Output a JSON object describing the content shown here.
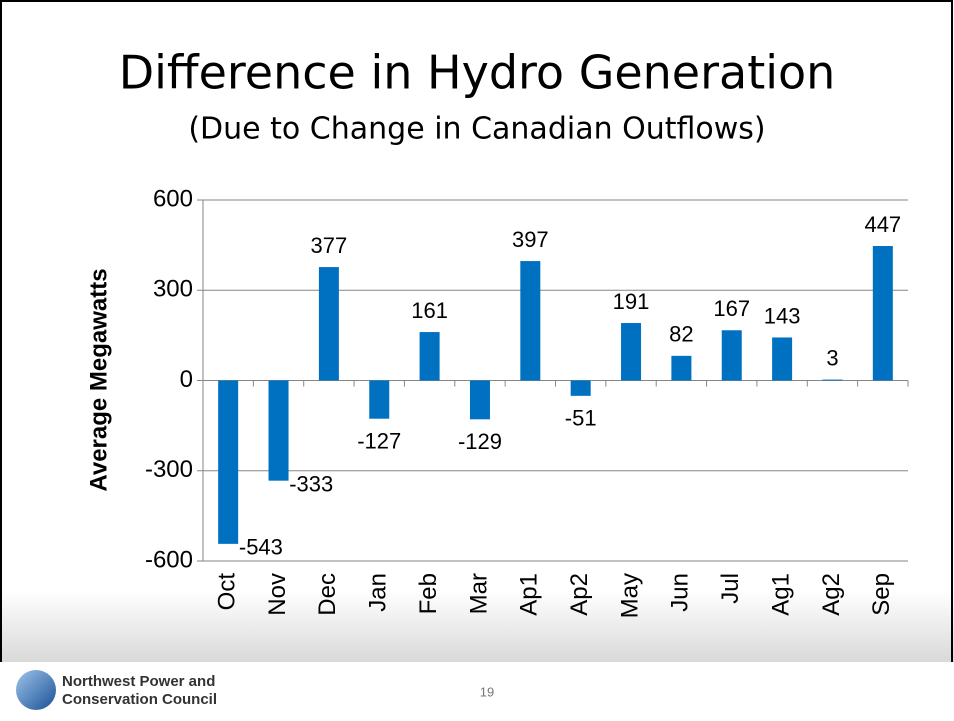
{
  "chart_data": {
    "type": "bar",
    "title": "Difference in Hydro Generation",
    "subtitle": "(Due to Change in Canadian Outflows)",
    "y_label": "Average Megawatts",
    "categories": [
      "Oct",
      "Nov",
      "Dec",
      "Jan",
      "Feb",
      "Mar",
      "Ap1",
      "Ap2",
      "May",
      "Jun",
      "Jul",
      "Ag1",
      "Ag2",
      "Sep"
    ],
    "values": [
      -543,
      -333,
      377,
      -127,
      161,
      -129,
      397,
      -51,
      191,
      82,
      167,
      143,
      3,
      447
    ],
    "color": "#0070c0",
    "ylim": [
      -600,
      600
    ],
    "yticks": [
      -600,
      -300,
      0,
      300,
      600
    ],
    "grid": true
  },
  "footer": {
    "org_lines": [
      "Northwest Power and",
      "Conservation Council"
    ],
    "page_number": "19"
  }
}
